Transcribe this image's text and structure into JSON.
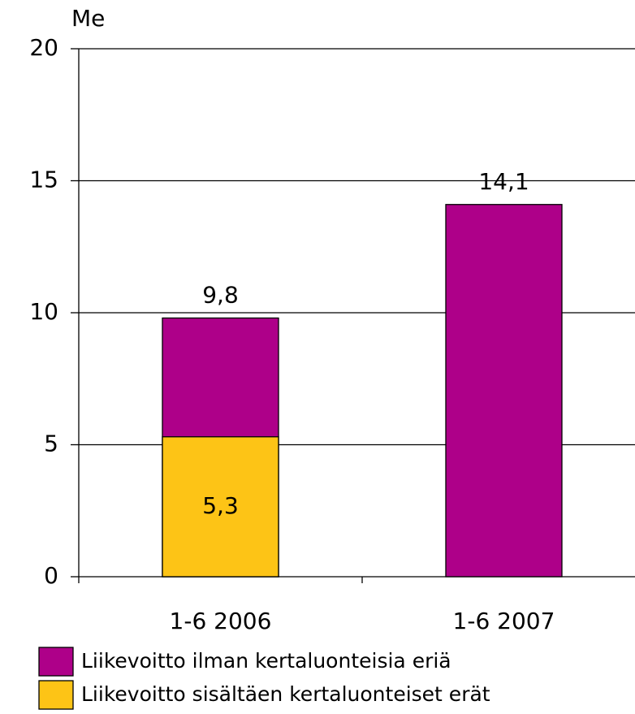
{
  "chart_data": {
    "type": "bar",
    "overlap": true,
    "y_label": "Me",
    "categories": [
      "1-6 2006",
      "1-6 2007"
    ],
    "series": [
      {
        "name": "Liikevoitto ilman kertaluonteisia eriä",
        "color": "#ae0089",
        "values": [
          9.8,
          14.1
        ],
        "value_labels": [
          "9,8",
          "14,1"
        ]
      },
      {
        "name": "Liikevoitto sisältäen kertaluonteiset erät",
        "color": "#fdc416",
        "values": [
          5.3,
          null
        ],
        "value_labels": [
          "5,3",
          null
        ]
      }
    ],
    "ylim": [
      0,
      20
    ],
    "yticks": [
      0,
      5,
      10,
      15,
      20
    ],
    "grid": true
  }
}
